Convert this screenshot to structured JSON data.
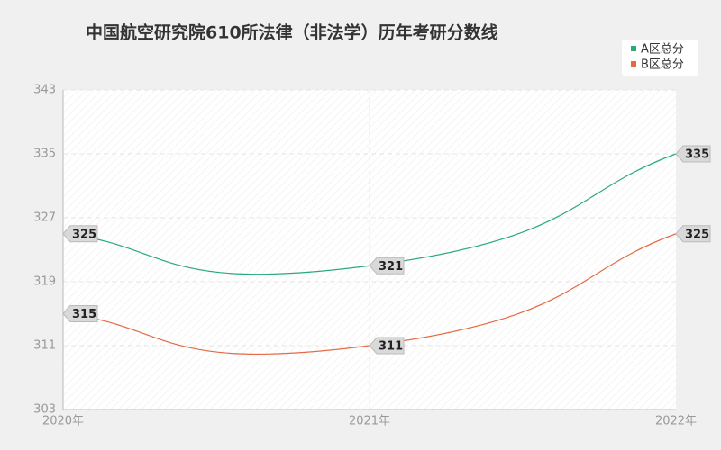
{
  "chart_data": {
    "type": "line",
    "title": "中国航空研究院610所法律（非法学）历年考研分数线",
    "categories": [
      "2020年",
      "2021年",
      "2022年"
    ],
    "series": [
      {
        "name": "A区总分",
        "color": "#2aa97d",
        "values": [
          325,
          321,
          335
        ]
      },
      {
        "name": "B区总分",
        "color": "#e46a43",
        "values": [
          315,
          311,
          325
        ]
      }
    ],
    "ylim": [
      303,
      343
    ],
    "yticks": [
      303,
      311,
      319,
      327,
      335,
      343
    ],
    "grid": true,
    "legend": "top-right",
    "smooth": true
  }
}
